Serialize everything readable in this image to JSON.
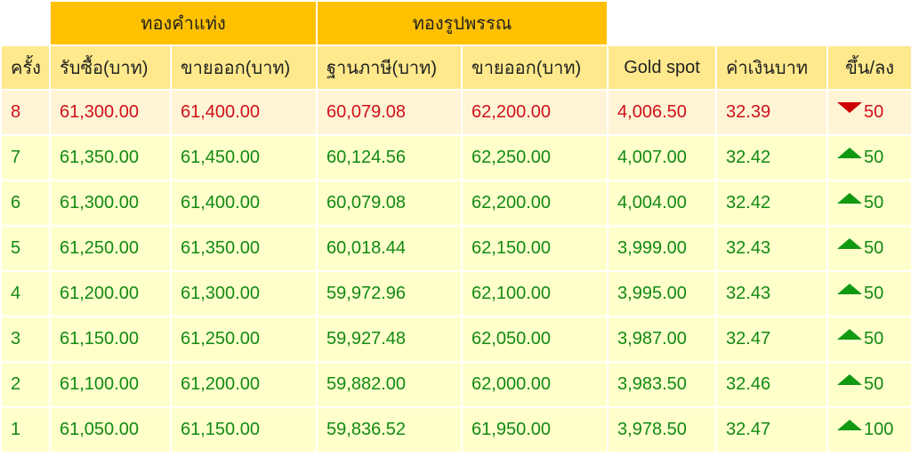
{
  "group_headers": {
    "bar_gold": "ทองคำแท่ง",
    "ornament_gold": "ทองรูปพรรณ"
  },
  "columns": [
    "ครั้ง",
    "รับซื้อ(บาท)",
    "ขายออก(บาท)",
    "ฐานภาษี(บาท)",
    "ขายออก(บาท)",
    "Gold spot",
    "ค่าเงินบาท",
    "ขึ้น/ลง"
  ],
  "colors": {
    "up": "#119911",
    "down": "#cc0000",
    "latest_row_text": "#d0101a",
    "row_text": "#128a12",
    "group_header_bg": "#ffc000",
    "column_header_bg": "#ffe98c"
  },
  "rows": [
    {
      "no": "8",
      "bar_buy": "61,300.00",
      "bar_sell": "61,400.00",
      "tax_base": "60,079.08",
      "orn_sell": "62,200.00",
      "spot": "4,006.50",
      "thb": "32.39",
      "dir": "down",
      "change": "50"
    },
    {
      "no": "7",
      "bar_buy": "61,350.00",
      "bar_sell": "61,450.00",
      "tax_base": "60,124.56",
      "orn_sell": "62,250.00",
      "spot": "4,007.00",
      "thb": "32.42",
      "dir": "up",
      "change": "50"
    },
    {
      "no": "6",
      "bar_buy": "61,300.00",
      "bar_sell": "61,400.00",
      "tax_base": "60,079.08",
      "orn_sell": "62,200.00",
      "spot": "4,004.00",
      "thb": "32.42",
      "dir": "up",
      "change": "50"
    },
    {
      "no": "5",
      "bar_buy": "61,250.00",
      "bar_sell": "61,350.00",
      "tax_base": "60,018.44",
      "orn_sell": "62,150.00",
      "spot": "3,999.00",
      "thb": "32.43",
      "dir": "up",
      "change": "50"
    },
    {
      "no": "4",
      "bar_buy": "61,200.00",
      "bar_sell": "61,300.00",
      "tax_base": "59,972.96",
      "orn_sell": "62,100.00",
      "spot": "3,995.00",
      "thb": "32.43",
      "dir": "up",
      "change": "50"
    },
    {
      "no": "3",
      "bar_buy": "61,150.00",
      "bar_sell": "61,250.00",
      "tax_base": "59,927.48",
      "orn_sell": "62,050.00",
      "spot": "3,987.00",
      "thb": "32.47",
      "dir": "up",
      "change": "50"
    },
    {
      "no": "2",
      "bar_buy": "61,100.00",
      "bar_sell": "61,200.00",
      "tax_base": "59,882.00",
      "orn_sell": "62,000.00",
      "spot": "3,983.50",
      "thb": "32.46",
      "dir": "up",
      "change": "50"
    },
    {
      "no": "1",
      "bar_buy": "61,050.00",
      "bar_sell": "61,150.00",
      "tax_base": "59,836.52",
      "orn_sell": "61,950.00",
      "spot": "3,978.50",
      "thb": "32.47",
      "dir": "up",
      "change": "100"
    }
  ]
}
